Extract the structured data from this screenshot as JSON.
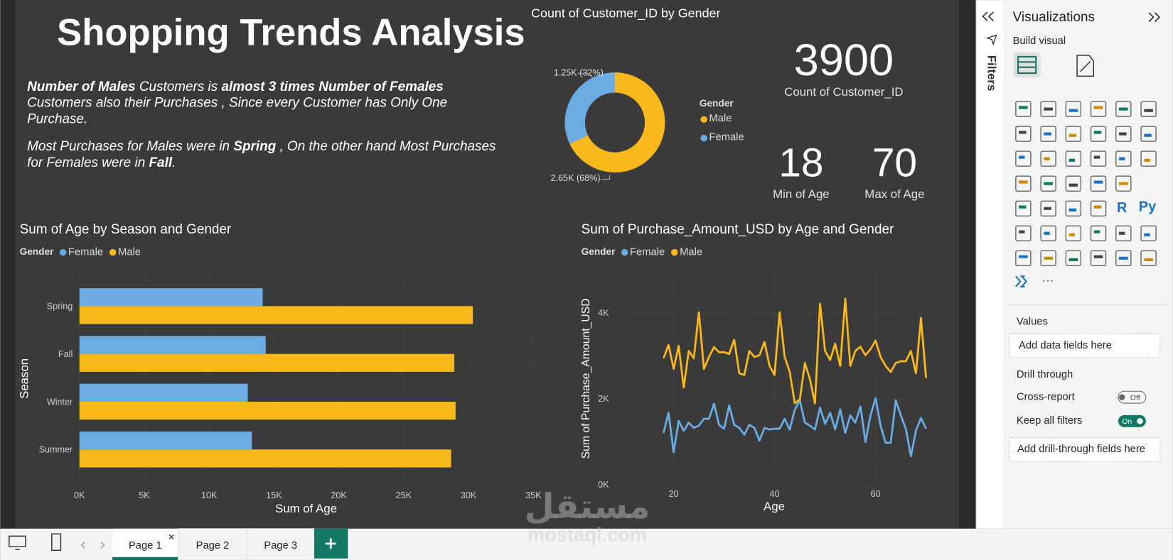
{
  "report": {
    "title": "Shopping Trends Analysis",
    "notes": [
      [
        [
          {
            "text": "Number of Males",
            "bold": true
          },
          {
            "text": " Customers is ",
            "bold": false
          },
          {
            "text": "almost 3 times Number of Females",
            "bold": true
          }
        ],
        [
          {
            "text": "Customers also their Purchases , Since every Customer has Only One",
            "bold": false
          }
        ],
        [
          {
            "text": "Purchase.",
            "bold": false
          }
        ]
      ],
      [
        [
          {
            "text": "Most Purchases for Males were in ",
            "bold": false
          },
          {
            "text": "Spring",
            "bold": true
          },
          {
            "text": " , On the other hand Most Purchases",
            "bold": false
          }
        ],
        [
          {
            "text": "for Females were in ",
            "bold": false
          },
          {
            "text": "Fall",
            "bold": true
          },
          {
            "text": ".",
            "bold": false
          }
        ]
      ]
    ]
  },
  "chart_data": [
    {
      "type": "donut",
      "title": "Count of Customer_ID by Gender",
      "legend_title": "Gender",
      "legend": "right",
      "categories": [
        "Male",
        "Female"
      ],
      "values": [
        2650,
        1250
      ],
      "value_labels": [
        "2.65K (68%)",
        "1.25K (32%)"
      ],
      "colors": [
        "#f9b81b",
        "#6cace4"
      ]
    },
    {
      "type": "bar",
      "orientation": "horizontal",
      "title": "Sum of Age by Season and Gender",
      "legend_title": "Gender",
      "legend": "top-left",
      "x_label": "Sum of Age",
      "y_label": "Season",
      "categories": [
        "Spring",
        "Fall",
        "Winter",
        "Summer"
      ],
      "series": [
        {
          "name": "Female",
          "color": "#6cace4",
          "values": [
            14130,
            14360,
            12980,
            13300
          ]
        },
        {
          "name": "Male",
          "color": "#f9b81b",
          "values": [
            30330,
            28900,
            29000,
            28660
          ]
        }
      ],
      "xlim": [
        0,
        35000
      ],
      "xticks": [
        {
          "value": 0,
          "label": "0K"
        },
        {
          "value": 5000,
          "label": "5K"
        },
        {
          "value": 10000,
          "label": "10K"
        },
        {
          "value": 15000,
          "label": "15K"
        },
        {
          "value": 20000,
          "label": "20K"
        },
        {
          "value": 25000,
          "label": "25K"
        },
        {
          "value": 30000,
          "label": "30K"
        },
        {
          "value": 35000,
          "label": "35K"
        }
      ],
      "grid": true
    },
    {
      "type": "line",
      "title": "Sum of Purchase_Amount_USD by Age and Gender",
      "legend_title": "Gender",
      "legend": "top-left",
      "x_label": "Age",
      "y_label": "Sum of Purchase_Amount_USD",
      "x": [
        18,
        19,
        20,
        21,
        22,
        23,
        24,
        25,
        26,
        27,
        28,
        29,
        30,
        31,
        32,
        33,
        34,
        35,
        36,
        37,
        38,
        39,
        40,
        41,
        42,
        43,
        44,
        45,
        46,
        47,
        48,
        49,
        50,
        51,
        52,
        53,
        54,
        55,
        56,
        57,
        58,
        59,
        60,
        61,
        62,
        63,
        64,
        65,
        66,
        67,
        68,
        69,
        70
      ],
      "series": [
        {
          "name": "Female",
          "color": "#6cace4",
          "values": [
            1220,
            1690,
            770,
            1500,
            1270,
            1460,
            1340,
            1390,
            1550,
            1550,
            1900,
            1410,
            1320,
            1860,
            1410,
            1340,
            1180,
            1410,
            1340,
            1040,
            1340,
            1300,
            1320,
            1320,
            1550,
            1300,
            1760,
            1980,
            1460,
            1390,
            1300,
            1810,
            1430,
            1690,
            1300,
            1770,
            1220,
            1630,
            1460,
            1840,
            1010,
            1630,
            2030,
            1390,
            990,
            990,
            1980,
            1630,
            1320,
            680,
            1270,
            1570,
            1320
          ]
        },
        {
          "name": "Male",
          "color": "#f9b81b",
          "values": [
            2960,
            3270,
            2710,
            3250,
            2280,
            3130,
            2960,
            4030,
            2710,
            2990,
            3220,
            3100,
            3100,
            3060,
            3390,
            2610,
            2570,
            3130,
            2990,
            3030,
            3340,
            2780,
            2570,
            4030,
            2990,
            2640,
            1910,
            2000,
            2850,
            2470,
            1910,
            4230,
            3130,
            2920,
            3300,
            2780,
            4350,
            2780,
            3130,
            3230,
            3030,
            3170,
            3370,
            2990,
            2780,
            2640,
            2850,
            2890,
            2890,
            3130,
            2610,
            3900,
            2500
          ]
        }
      ],
      "xlim": [
        18,
        70
      ],
      "xticks": [
        20,
        40,
        60
      ],
      "ylim": [
        0,
        5000
      ],
      "yticks": [
        {
          "value": 0,
          "label": "0K"
        },
        {
          "value": 2000,
          "label": "2K"
        },
        {
          "value": 4000,
          "label": "4K"
        }
      ],
      "grid": true
    }
  ],
  "cards": [
    {
      "value": 3900,
      "label": "Count of Customer_ID"
    },
    {
      "value": 18,
      "label": "Min of Age"
    },
    {
      "value": 70,
      "label": "Max of Age"
    }
  ],
  "pane": {
    "filters": "Filters",
    "title": "Visualizations",
    "build_visual": "Build visual",
    "icon_labels": [
      "R",
      "Py"
    ],
    "more": "···",
    "values_label": "Values",
    "values_placeholder": "Add data fields here",
    "drill_through": "Drill through",
    "cross_report": "Cross-report",
    "cross_report_state": "Off",
    "keep_filters": "Keep all filters",
    "keep_filters_state": "On",
    "drill_placeholder": "Add drill-through fields here"
  },
  "tabs": [
    "Page 1",
    "Page 2",
    "Page 3"
  ],
  "watermark": {
    "arabic": "مستقل",
    "latin": "mostaql.com"
  }
}
